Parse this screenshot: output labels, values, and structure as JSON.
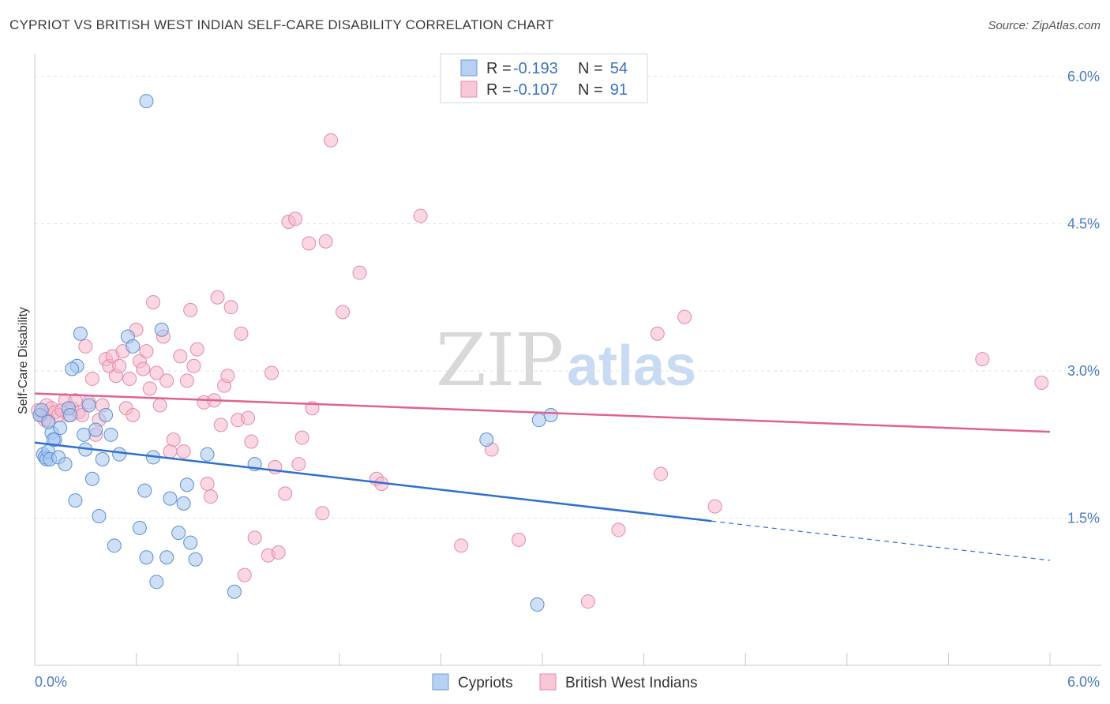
{
  "title": "CYPRIOT VS BRITISH WEST INDIAN SELF-CARE DISABILITY CORRELATION CHART",
  "source": "Source: ZipAtlas.com",
  "watermark": {
    "zip": "ZIP",
    "atlas": "atlas"
  },
  "legend": [
    {
      "r_label": "R =",
      "r_value": "-0.193",
      "n_label": "N =",
      "n_value": "54",
      "color": "#a8c6ef"
    },
    {
      "r_label": "R =",
      "r_value": "-0.107",
      "n_label": "N =",
      "n_value": "91",
      "color": "#f5b6cb"
    }
  ],
  "chart_data": {
    "type": "scatter",
    "xlabel": "",
    "ylabel": "Self-Care Disability",
    "xlim": [
      0,
      6.0
    ],
    "ylim": [
      0,
      6.3
    ],
    "x_tick_labels": [
      "0.0%",
      "6.0%"
    ],
    "y_ticks": [
      1.5,
      3.0,
      4.5,
      6.0
    ],
    "y_tick_labels": [
      "1.5%",
      "3.0%",
      "4.5%",
      "6.0%"
    ],
    "grid": true,
    "legend_position": "top-center",
    "series": [
      {
        "name": "Cypriots",
        "color": "#a8c6ef",
        "edge": "#5a8fd6",
        "line_color": "#2e6fd0",
        "trend": {
          "x0": 0.0,
          "y0": 2.27,
          "x1": 4.0,
          "y1": 1.47,
          "dash_to_x": 6.0,
          "dash_to_y": 1.07
        },
        "points": [
          [
            0.03,
            2.55
          ],
          [
            0.05,
            2.15
          ],
          [
            0.06,
            2.12
          ],
          [
            0.07,
            2.1
          ],
          [
            0.08,
            2.18
          ],
          [
            0.09,
            2.1
          ],
          [
            0.1,
            2.37
          ],
          [
            0.12,
            2.3
          ],
          [
            0.14,
            2.12
          ],
          [
            0.15,
            2.42
          ],
          [
            0.18,
            2.05
          ],
          [
            0.2,
            2.62
          ],
          [
            0.21,
            2.55
          ],
          [
            0.24,
            1.68
          ],
          [
            0.25,
            3.05
          ],
          [
            0.27,
            3.38
          ],
          [
            0.29,
            2.35
          ],
          [
            0.3,
            2.2
          ],
          [
            0.32,
            2.65
          ],
          [
            0.34,
            1.9
          ],
          [
            0.36,
            2.4
          ],
          [
            0.38,
            1.52
          ],
          [
            0.4,
            2.1
          ],
          [
            0.42,
            2.55
          ],
          [
            0.45,
            2.35
          ],
          [
            0.47,
            1.22
          ],
          [
            0.5,
            2.15
          ],
          [
            0.55,
            3.35
          ],
          [
            0.58,
            3.25
          ],
          [
            0.62,
            1.4
          ],
          [
            0.65,
            1.78
          ],
          [
            0.66,
            1.1
          ],
          [
            0.7,
            2.12
          ],
          [
            0.72,
            0.85
          ],
          [
            0.75,
            3.42
          ],
          [
            0.78,
            1.1
          ],
          [
            0.8,
            1.7
          ],
          [
            0.85,
            1.35
          ],
          [
            0.88,
            1.65
          ],
          [
            0.9,
            1.84
          ],
          [
            0.92,
            1.25
          ],
          [
            0.95,
            1.08
          ],
          [
            1.02,
            2.15
          ],
          [
            1.18,
            0.75
          ],
          [
            1.3,
            2.05
          ],
          [
            0.66,
            5.75
          ],
          [
            2.67,
            2.3
          ],
          [
            2.98,
            2.5
          ],
          [
            3.05,
            2.55
          ],
          [
            2.97,
            0.62
          ],
          [
            0.04,
            2.6
          ],
          [
            0.11,
            2.3
          ],
          [
            0.22,
            3.02
          ],
          [
            0.08,
            2.48
          ]
        ]
      },
      {
        "name": "British West Indians",
        "color": "#f5b6cb",
        "edge": "#e58aa8",
        "line_color": "#e0628e",
        "trend": {
          "x0": 0.0,
          "y0": 2.77,
          "x1": 6.0,
          "y1": 2.38
        },
        "points": [
          [
            0.02,
            2.6
          ],
          [
            0.04,
            2.55
          ],
          [
            0.06,
            2.5
          ],
          [
            0.07,
            2.65
          ],
          [
            0.08,
            2.5
          ],
          [
            0.1,
            2.62
          ],
          [
            0.12,
            2.58
          ],
          [
            0.14,
            2.55
          ],
          [
            0.16,
            2.6
          ],
          [
            0.18,
            2.7
          ],
          [
            0.2,
            2.55
          ],
          [
            0.22,
            2.62
          ],
          [
            0.24,
            2.7
          ],
          [
            0.26,
            2.58
          ],
          [
            0.28,
            2.55
          ],
          [
            0.3,
            3.25
          ],
          [
            0.32,
            2.68
          ],
          [
            0.34,
            2.92
          ],
          [
            0.36,
            2.35
          ],
          [
            0.38,
            2.5
          ],
          [
            0.4,
            2.65
          ],
          [
            0.42,
            3.12
          ],
          [
            0.44,
            3.05
          ],
          [
            0.46,
            3.15
          ],
          [
            0.48,
            2.95
          ],
          [
            0.5,
            3.05
          ],
          [
            0.52,
            3.2
          ],
          [
            0.54,
            2.62
          ],
          [
            0.56,
            2.92
          ],
          [
            0.58,
            2.55
          ],
          [
            0.6,
            3.42
          ],
          [
            0.62,
            3.1
          ],
          [
            0.64,
            3.02
          ],
          [
            0.66,
            3.2
          ],
          [
            0.68,
            2.82
          ],
          [
            0.7,
            3.7
          ],
          [
            0.72,
            2.98
          ],
          [
            0.74,
            2.65
          ],
          [
            0.76,
            3.35
          ],
          [
            0.78,
            2.9
          ],
          [
            0.8,
            2.18
          ],
          [
            0.82,
            2.3
          ],
          [
            0.86,
            3.15
          ],
          [
            0.88,
            2.18
          ],
          [
            0.9,
            2.9
          ],
          [
            0.92,
            3.62
          ],
          [
            0.94,
            3.05
          ],
          [
            0.96,
            3.22
          ],
          [
            1.0,
            2.68
          ],
          [
            1.02,
            1.85
          ],
          [
            1.04,
            1.72
          ],
          [
            1.06,
            2.7
          ],
          [
            1.08,
            3.75
          ],
          [
            1.1,
            2.45
          ],
          [
            1.12,
            2.85
          ],
          [
            1.14,
            2.95
          ],
          [
            1.16,
            3.65
          ],
          [
            1.2,
            2.5
          ],
          [
            1.22,
            3.38
          ],
          [
            1.24,
            0.92
          ],
          [
            1.26,
            2.52
          ],
          [
            1.28,
            2.28
          ],
          [
            1.3,
            1.3
          ],
          [
            1.38,
            1.12
          ],
          [
            1.4,
            2.98
          ],
          [
            1.42,
            2.02
          ],
          [
            1.44,
            1.15
          ],
          [
            1.48,
            1.75
          ],
          [
            1.5,
            4.52
          ],
          [
            1.54,
            4.55
          ],
          [
            1.56,
            2.05
          ],
          [
            1.58,
            2.32
          ],
          [
            1.62,
            4.3
          ],
          [
            1.64,
            2.62
          ],
          [
            1.7,
            1.55
          ],
          [
            1.72,
            4.32
          ],
          [
            1.75,
            5.35
          ],
          [
            1.82,
            3.6
          ],
          [
            1.92,
            4.0
          ],
          [
            2.02,
            1.9
          ],
          [
            2.05,
            1.85
          ],
          [
            2.28,
            4.58
          ],
          [
            2.52,
            1.22
          ],
          [
            2.7,
            2.2
          ],
          [
            2.86,
            1.28
          ],
          [
            3.27,
            0.65
          ],
          [
            3.45,
            1.38
          ],
          [
            3.68,
            3.38
          ],
          [
            3.7,
            1.95
          ],
          [
            3.84,
            3.55
          ],
          [
            4.02,
            1.62
          ]
        ]
      }
    ],
    "extra_points_br": [
      [
        5.6,
        3.12
      ],
      [
        5.95,
        2.88
      ]
    ]
  },
  "bottom_legend": [
    {
      "label": "Cypriots"
    },
    {
      "label": "British West Indians"
    }
  ]
}
